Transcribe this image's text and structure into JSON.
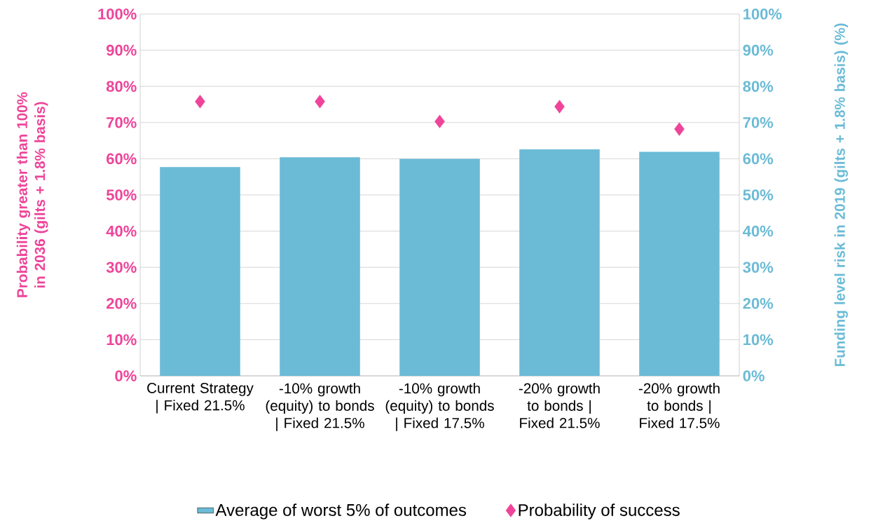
{
  "chart_data": {
    "type": "bar",
    "categories": [
      "Current Strategy | Fixed 21.5%",
      "-10% growth (equity) to bonds | Fixed 21.5%",
      "-10% growth (equity) to bonds | Fixed 17.5%",
      "-20% growth to bonds | Fixed 21.5%",
      "-20% growth to bonds | Fixed 17.5%"
    ],
    "series": [
      {
        "name": "Average of worst 5% of outcomes",
        "color": "#6bbbd6",
        "axis": "y2",
        "values": [
          57.7,
          60.4,
          60.0,
          62.6,
          61.9
        ]
      },
      {
        "name": "Probability of success",
        "color": "#ee4499",
        "type": "scatter",
        "marker": "diamond",
        "values": [
          75.8,
          75.8,
          70.3,
          74.4,
          68.2
        ]
      }
    ],
    "ylabel": "Probability greater than 100% in 2036 (gilts + 1.8% basis)",
    "y2label": "Funding level risk in 2019 (gilts + 1.8% basis) (%)",
    "ylim": [
      0,
      100
    ],
    "yticks": [
      {
        "value": 0,
        "label": "0%"
      },
      {
        "value": 10,
        "label": "10%"
      },
      {
        "value": 20,
        "label": "20%"
      },
      {
        "value": 30,
        "label": "30%"
      },
      {
        "value": 40,
        "label": "40%"
      },
      {
        "value": 50,
        "label": "50%"
      },
      {
        "value": 60,
        "label": "60%"
      },
      {
        "value": 70,
        "label": "70%"
      },
      {
        "value": 80,
        "label": "80%"
      },
      {
        "value": 90,
        "label": "90%"
      },
      {
        "value": 100,
        "label": "100%"
      }
    ],
    "y2lim": [
      0,
      100
    ],
    "y2ticks": [
      {
        "value": 0,
        "label": "0%"
      },
      {
        "value": 10,
        "label": "10%"
      },
      {
        "value": 20,
        "label": "20%"
      },
      {
        "value": 30,
        "label": "30%"
      },
      {
        "value": 40,
        "label": "40%"
      },
      {
        "value": 50,
        "label": "50%"
      },
      {
        "value": 60,
        "label": "60%"
      },
      {
        "value": 70,
        "label": "70%"
      },
      {
        "value": 80,
        "label": "80%"
      },
      {
        "value": 90,
        "label": "90%"
      },
      {
        "value": 100,
        "label": "100%"
      }
    ],
    "grid": "y",
    "legend": "bottom"
  }
}
